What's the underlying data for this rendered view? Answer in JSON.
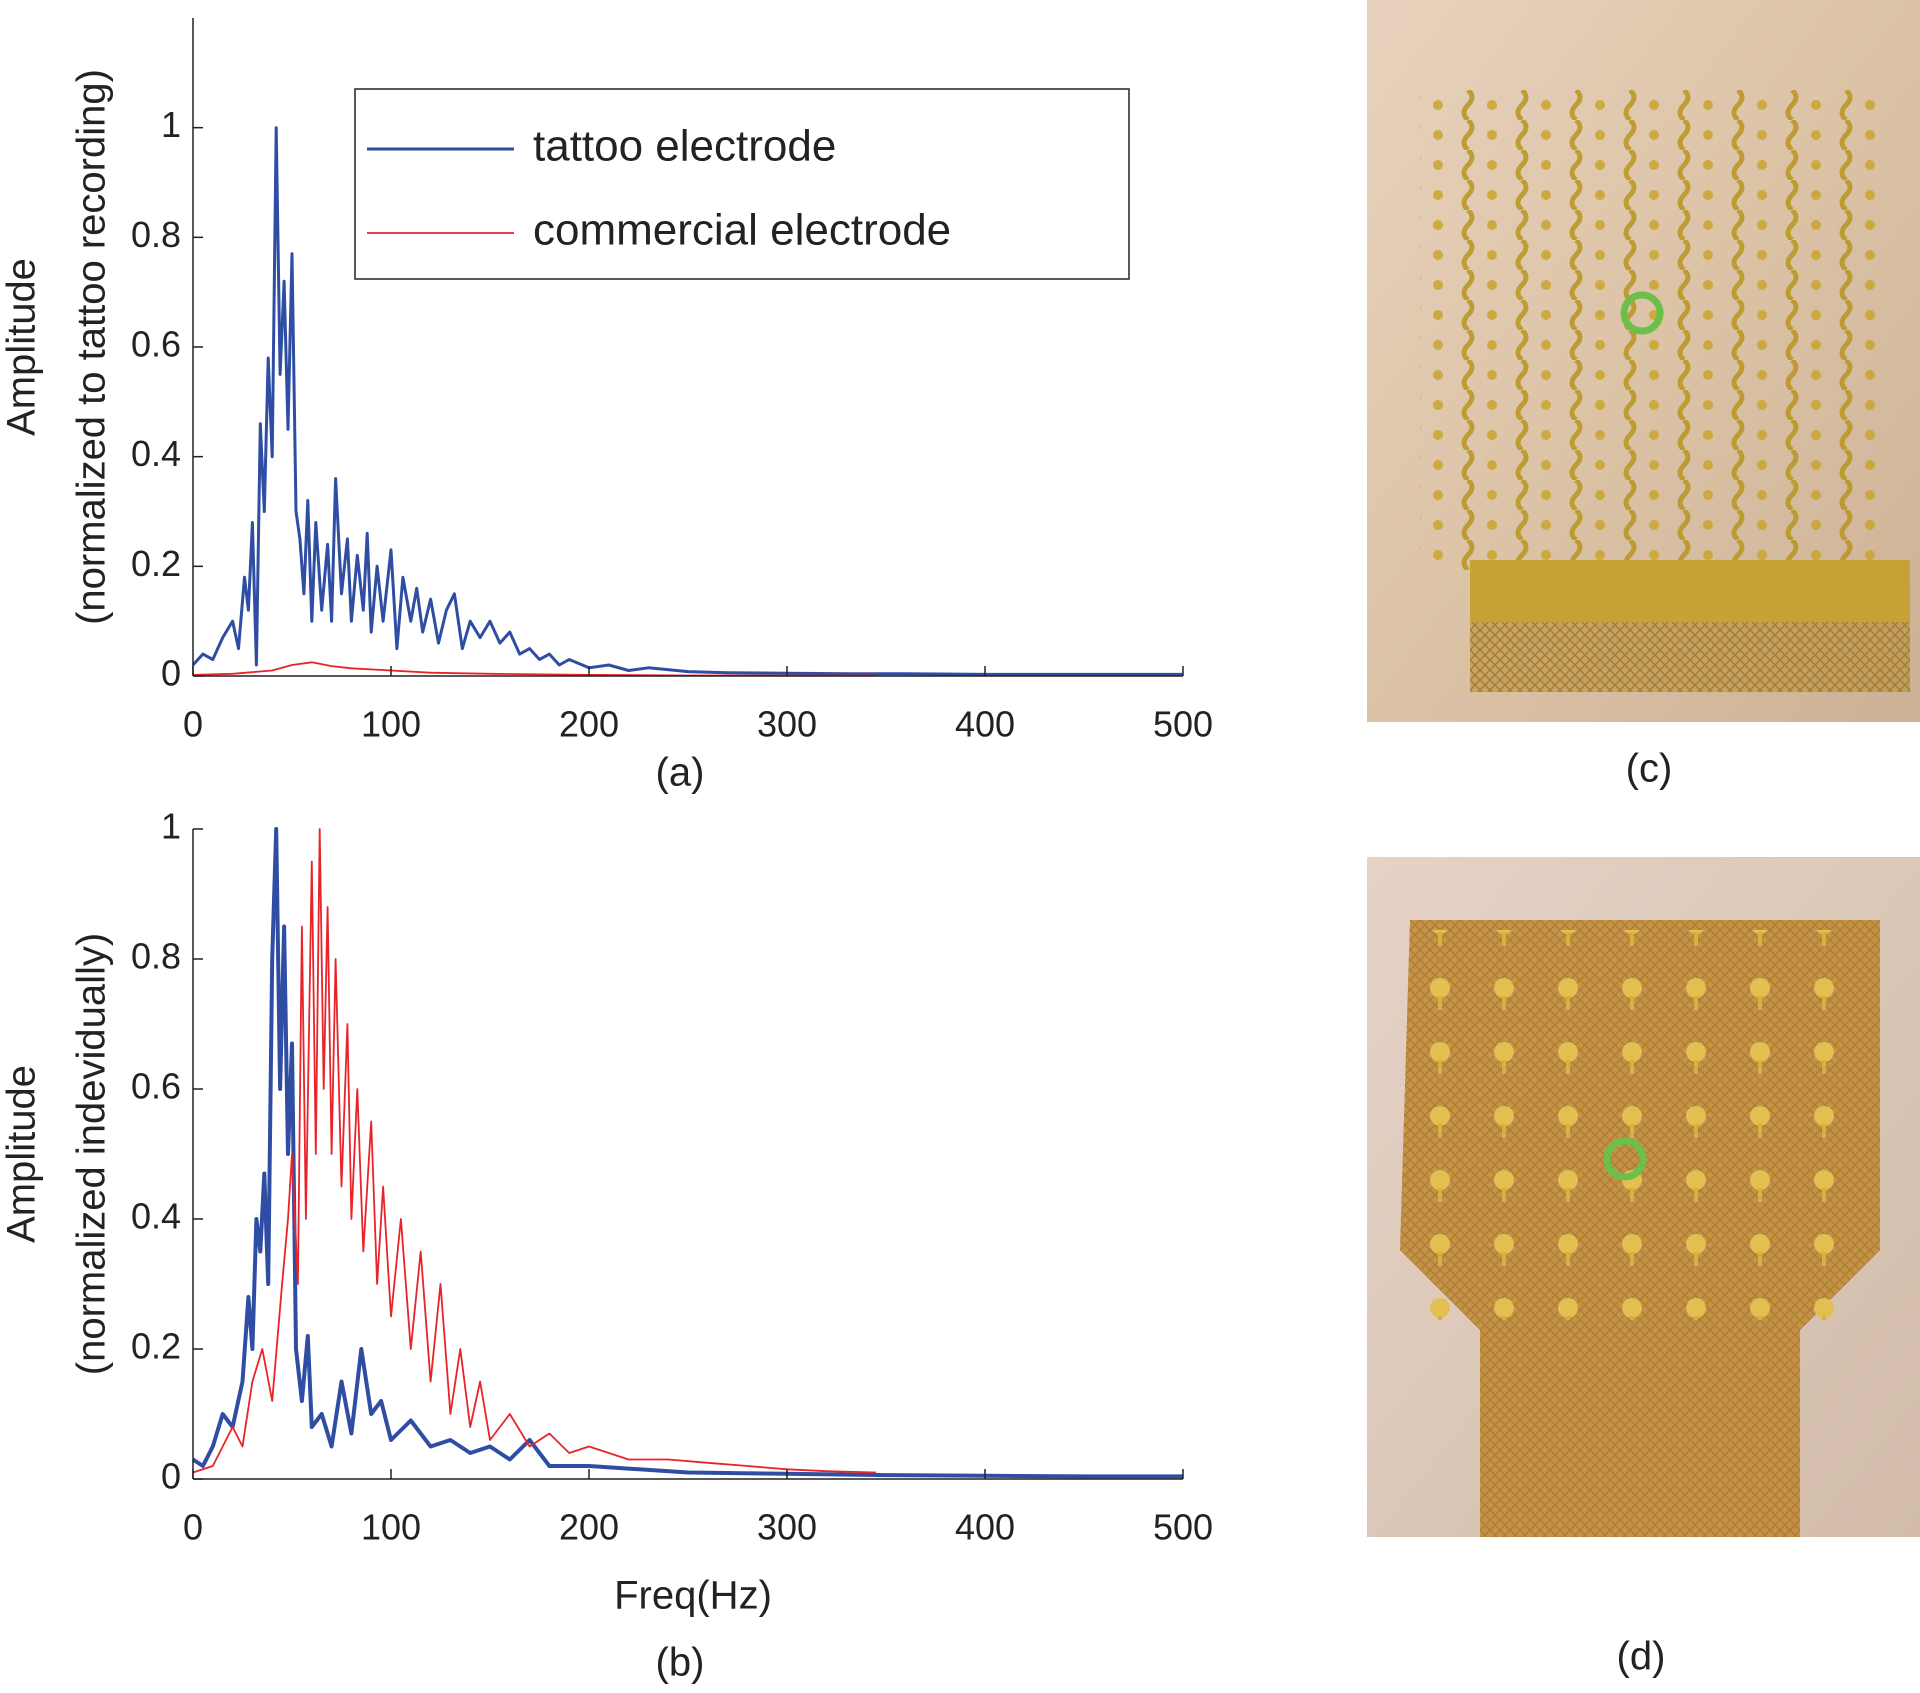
{
  "chart_data": [
    {
      "type": "line",
      "ylabel": [
        "Amplitude",
        "(normalized to tattoo recording)"
      ],
      "caption": "(a)",
      "xlim": [
        0,
        500
      ],
      "xticks": [
        0,
        100,
        200,
        300,
        400,
        500
      ],
      "ylim": [
        0,
        1.2
      ],
      "yticks": [
        0,
        0.2,
        0.4,
        0.6,
        0.8,
        1
      ],
      "legend": "upper right",
      "series": [
        {
          "name": "tattoo electrode",
          "color": "#2f4ea3",
          "width": 3,
          "x": [
            0,
            5,
            10,
            15,
            20,
            23,
            26,
            28,
            30,
            32,
            34,
            36,
            38,
            40,
            42,
            44,
            46,
            48,
            50,
            52,
            54,
            56,
            58,
            60,
            62,
            65,
            68,
            70,
            72,
            75,
            78,
            80,
            83,
            86,
            88,
            90,
            93,
            96,
            100,
            103,
            106,
            110,
            113,
            116,
            120,
            124,
            128,
            132,
            136,
            140,
            145,
            150,
            155,
            160,
            165,
            170,
            175,
            180,
            185,
            190,
            200,
            210,
            220,
            230,
            250,
            270,
            300,
            330,
            360,
            400,
            450,
            500
          ],
          "values": [
            0.02,
            0.04,
            0.03,
            0.07,
            0.1,
            0.05,
            0.18,
            0.12,
            0.28,
            0.02,
            0.46,
            0.3,
            0.58,
            0.4,
            1.0,
            0.55,
            0.72,
            0.45,
            0.77,
            0.3,
            0.25,
            0.15,
            0.32,
            0.1,
            0.28,
            0.12,
            0.24,
            0.1,
            0.36,
            0.15,
            0.25,
            0.1,
            0.22,
            0.12,
            0.26,
            0.08,
            0.2,
            0.1,
            0.23,
            0.05,
            0.18,
            0.1,
            0.16,
            0.08,
            0.14,
            0.06,
            0.12,
            0.15,
            0.05,
            0.1,
            0.07,
            0.1,
            0.06,
            0.08,
            0.04,
            0.05,
            0.03,
            0.04,
            0.02,
            0.03,
            0.015,
            0.02,
            0.01,
            0.015,
            0.008,
            0.006,
            0.005,
            0.004,
            0.004,
            0.003,
            0.003,
            0.003
          ]
        },
        {
          "name": "commercial electrode",
          "color": "#e8232a",
          "width": 1.8,
          "x": [
            0,
            20,
            40,
            50,
            60,
            70,
            80,
            100,
            120,
            150,
            200,
            250,
            300,
            345
          ],
          "values": [
            0.002,
            0.004,
            0.01,
            0.02,
            0.025,
            0.018,
            0.014,
            0.01,
            0.006,
            0.004,
            0.002,
            0.001,
            0.001,
            0.001
          ]
        }
      ]
    },
    {
      "type": "line",
      "ylabel": [
        "Amplitude",
        "(normalized indevidually)"
      ],
      "xlabel": "Freq(Hz)",
      "caption": "(b)",
      "xlim": [
        0,
        500
      ],
      "xticks": [
        0,
        100,
        200,
        300,
        400,
        500
      ],
      "ylim": [
        0,
        1
      ],
      "yticks": [
        0,
        0.2,
        0.4,
        0.6,
        0.8,
        1
      ],
      "legend": false,
      "series": [
        {
          "color": "#2f4ea3",
          "width": 4,
          "x": [
            0,
            5,
            10,
            15,
            20,
            25,
            28,
            30,
            32,
            34,
            36,
            38,
            40,
            42,
            44,
            46,
            48,
            50,
            52,
            55,
            58,
            60,
            65,
            70,
            75,
            80,
            85,
            90,
            95,
            100,
            110,
            120,
            130,
            140,
            150,
            160,
            170,
            180,
            200,
            250,
            300,
            350,
            400,
            450,
            500
          ],
          "values": [
            0.03,
            0.02,
            0.05,
            0.1,
            0.08,
            0.15,
            0.28,
            0.2,
            0.4,
            0.35,
            0.47,
            0.3,
            0.8,
            1.0,
            0.6,
            0.85,
            0.5,
            0.67,
            0.2,
            0.12,
            0.22,
            0.08,
            0.1,
            0.05,
            0.15,
            0.07,
            0.2,
            0.1,
            0.12,
            0.06,
            0.09,
            0.05,
            0.06,
            0.04,
            0.05,
            0.03,
            0.06,
            0.02,
            0.02,
            0.01,
            0.008,
            0.006,
            0.005,
            0.004,
            0.004
          ]
        },
        {
          "color": "#e8232a",
          "width": 1.8,
          "x": [
            0,
            10,
            15,
            20,
            25,
            30,
            35,
            40,
            45,
            48,
            50,
            53,
            55,
            57,
            60,
            62,
            64,
            66,
            68,
            70,
            72,
            75,
            78,
            80,
            83,
            86,
            90,
            93,
            96,
            100,
            105,
            110,
            115,
            120,
            125,
            130,
            135,
            140,
            145,
            150,
            160,
            170,
            180,
            190,
            200,
            220,
            240,
            260,
            280,
            300,
            320,
            345
          ],
          "values": [
            0.01,
            0.02,
            0.05,
            0.08,
            0.05,
            0.15,
            0.2,
            0.12,
            0.3,
            0.4,
            0.5,
            0.3,
            0.85,
            0.4,
            0.95,
            0.5,
            1.0,
            0.6,
            0.88,
            0.5,
            0.8,
            0.45,
            0.7,
            0.4,
            0.6,
            0.35,
            0.55,
            0.3,
            0.45,
            0.25,
            0.4,
            0.2,
            0.35,
            0.15,
            0.3,
            0.1,
            0.2,
            0.08,
            0.15,
            0.06,
            0.1,
            0.05,
            0.07,
            0.04,
            0.05,
            0.03,
            0.03,
            0.025,
            0.02,
            0.015,
            0.012,
            0.01
          ]
        }
      ]
    }
  ],
  "photos": [
    {
      "caption": "(c)"
    },
    {
      "caption": "(d)"
    }
  ]
}
